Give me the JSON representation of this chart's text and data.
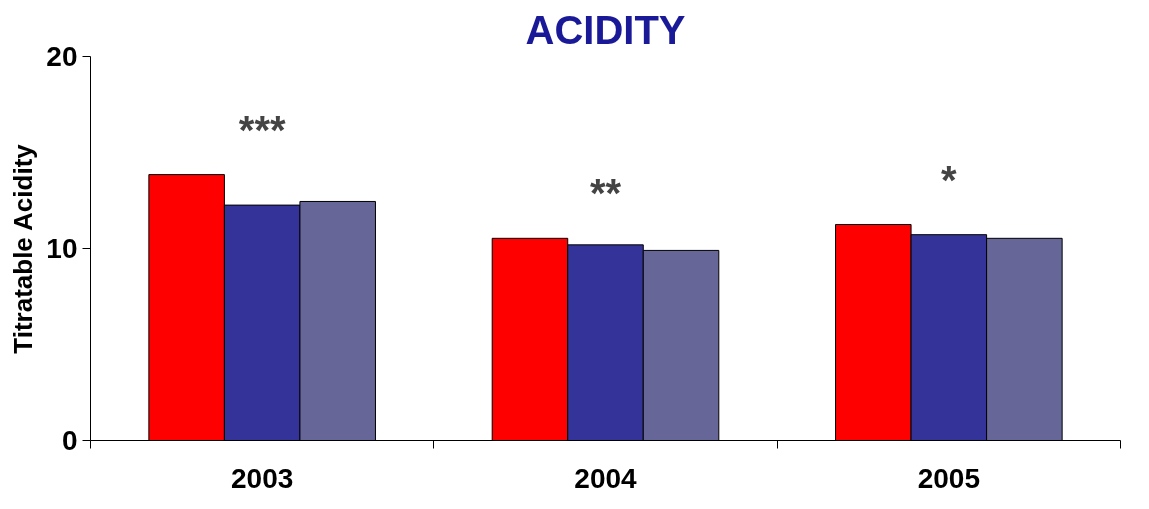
{
  "chart_data": {
    "type": "bar",
    "title": "ACIDITY",
    "ylabel": "Titratable Acidity",
    "categories": [
      "2003",
      "2004",
      "2005"
    ],
    "series": [
      {
        "color": "#ff0000",
        "values": [
          13.85,
          10.53,
          11.25
        ]
      },
      {
        "color": "#333399",
        "values": [
          12.26,
          10.19,
          10.72
        ]
      },
      {
        "color": "#666699",
        "values": [
          12.45,
          9.9,
          10.53
        ]
      }
    ],
    "ylim": [
      0,
      20
    ],
    "yticks": [
      0,
      10,
      20
    ],
    "grid": false,
    "annotations": [
      "***",
      "**",
      "*"
    ]
  }
}
